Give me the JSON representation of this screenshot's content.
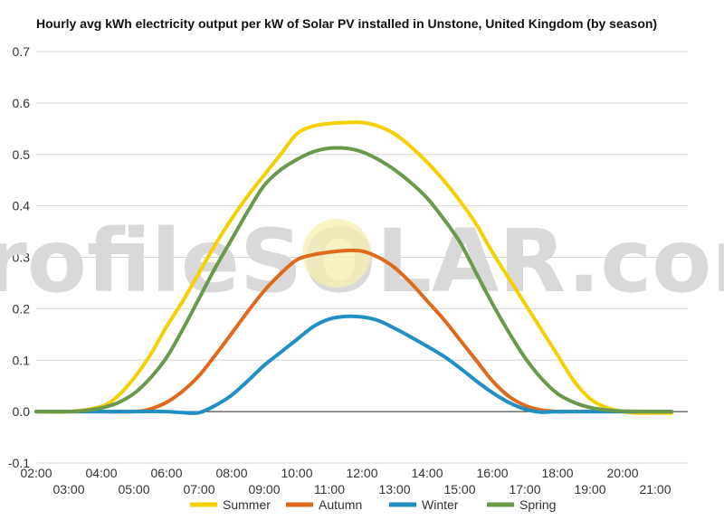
{
  "chart_data": {
    "type": "line",
    "title": "Hourly avg kWh electricity output per kW of Solar PV installed in Unstone, United Kingdom (by season)",
    "xlabel": "",
    "ylabel": "",
    "ylim": [
      -0.1,
      0.7
    ],
    "yticks": [
      "0.7",
      "0.6",
      "0.5",
      "0.4",
      "0.3",
      "0.2",
      "0.1",
      "0.0",
      "-0.1"
    ],
    "xlim": [
      2,
      22
    ],
    "xticks_top": [
      "02:00",
      "04:00",
      "06:00",
      "08:00",
      "10:00",
      "12:00",
      "14:00",
      "16:00",
      "18:00",
      "20:00"
    ],
    "xticks_bottom": [
      "03:00",
      "05:00",
      "07:00",
      "09:00",
      "11:00",
      "13:00",
      "15:00",
      "17:00",
      "19:00",
      "21:00"
    ],
    "grid": true,
    "legend_position": "bottom",
    "watermark": "profileSOLAR.com",
    "series": [
      {
        "name": "Summer",
        "color": "#f5d000",
        "x": [
          2,
          3,
          4,
          4.5,
          5,
          5.5,
          6,
          6.5,
          7,
          7.5,
          8,
          8.5,
          9,
          9.5,
          10,
          10.5,
          11,
          11.5,
          12,
          12.5,
          13,
          13.5,
          14,
          14.5,
          15,
          15.5,
          16,
          16.5,
          17,
          17.5,
          18,
          18.5,
          19,
          19.5,
          20,
          20.5,
          21,
          21.5
        ],
        "y": [
          0,
          0,
          0.01,
          0.03,
          0.065,
          0.11,
          0.165,
          0.215,
          0.27,
          0.325,
          0.375,
          0.42,
          0.46,
          0.5,
          0.54,
          0.555,
          0.56,
          0.562,
          0.562,
          0.555,
          0.54,
          0.515,
          0.485,
          0.45,
          0.41,
          0.365,
          0.31,
          0.26,
          0.21,
          0.16,
          0.11,
          0.06,
          0.025,
          0.008,
          0,
          -0.003,
          -0.003,
          -0.003
        ]
      },
      {
        "name": "Autumn",
        "color": "#e06a1b",
        "x": [
          2,
          3,
          4,
          5,
          5.5,
          6,
          6.5,
          7,
          7.5,
          8,
          8.5,
          9,
          9.5,
          10,
          10.5,
          11,
          11.5,
          12,
          12.5,
          13,
          13.5,
          14,
          14.5,
          15,
          15.5,
          16,
          16.5,
          17,
          17.5,
          18,
          18.5,
          19,
          20,
          21,
          21.5
        ],
        "y": [
          0,
          0,
          0,
          0,
          0.005,
          0.018,
          0.04,
          0.07,
          0.11,
          0.152,
          0.195,
          0.235,
          0.268,
          0.295,
          0.305,
          0.31,
          0.313,
          0.312,
          0.3,
          0.28,
          0.25,
          0.215,
          0.18,
          0.14,
          0.1,
          0.06,
          0.03,
          0.012,
          0.003,
          0,
          0,
          0,
          0,
          0,
          0
        ]
      },
      {
        "name": "Winter",
        "color": "#1f8fc4",
        "x": [
          2,
          3,
          4,
          5,
          6,
          6.5,
          7,
          7.5,
          8,
          8.5,
          9,
          9.5,
          10,
          10.5,
          11,
          11.5,
          12,
          12.5,
          13,
          13.5,
          14,
          14.5,
          15,
          15.5,
          16,
          16.5,
          17,
          17.5,
          18,
          19,
          20,
          21,
          21.5
        ],
        "y": [
          0,
          0,
          0,
          0,
          0,
          -0.002,
          -0.002,
          0.012,
          0.032,
          0.06,
          0.09,
          0.115,
          0.14,
          0.165,
          0.18,
          0.185,
          0.184,
          0.177,
          0.162,
          0.145,
          0.127,
          0.108,
          0.085,
          0.06,
          0.037,
          0.018,
          0.005,
          -0.001,
          0,
          0,
          0,
          0,
          0
        ]
      },
      {
        "name": "Spring",
        "color": "#6a994e",
        "x": [
          2,
          3,
          3.5,
          4,
          4.5,
          5,
          5.5,
          6,
          6.5,
          7,
          7.5,
          8,
          8.5,
          9,
          9.5,
          10,
          10.5,
          11,
          11.5,
          12,
          12.5,
          13,
          13.5,
          14,
          14.5,
          15,
          15.5,
          16,
          16.5,
          17,
          17.5,
          18,
          18.5,
          19,
          19.5,
          20,
          21,
          21.5
        ],
        "y": [
          0,
          0,
          0.002,
          0.007,
          0.017,
          0.035,
          0.065,
          0.105,
          0.16,
          0.22,
          0.28,
          0.335,
          0.39,
          0.44,
          0.47,
          0.49,
          0.505,
          0.512,
          0.512,
          0.505,
          0.49,
          0.47,
          0.445,
          0.415,
          0.375,
          0.33,
          0.27,
          0.21,
          0.155,
          0.105,
          0.065,
          0.035,
          0.018,
          0.008,
          0.003,
          0.001,
          0,
          0
        ]
      }
    ]
  }
}
